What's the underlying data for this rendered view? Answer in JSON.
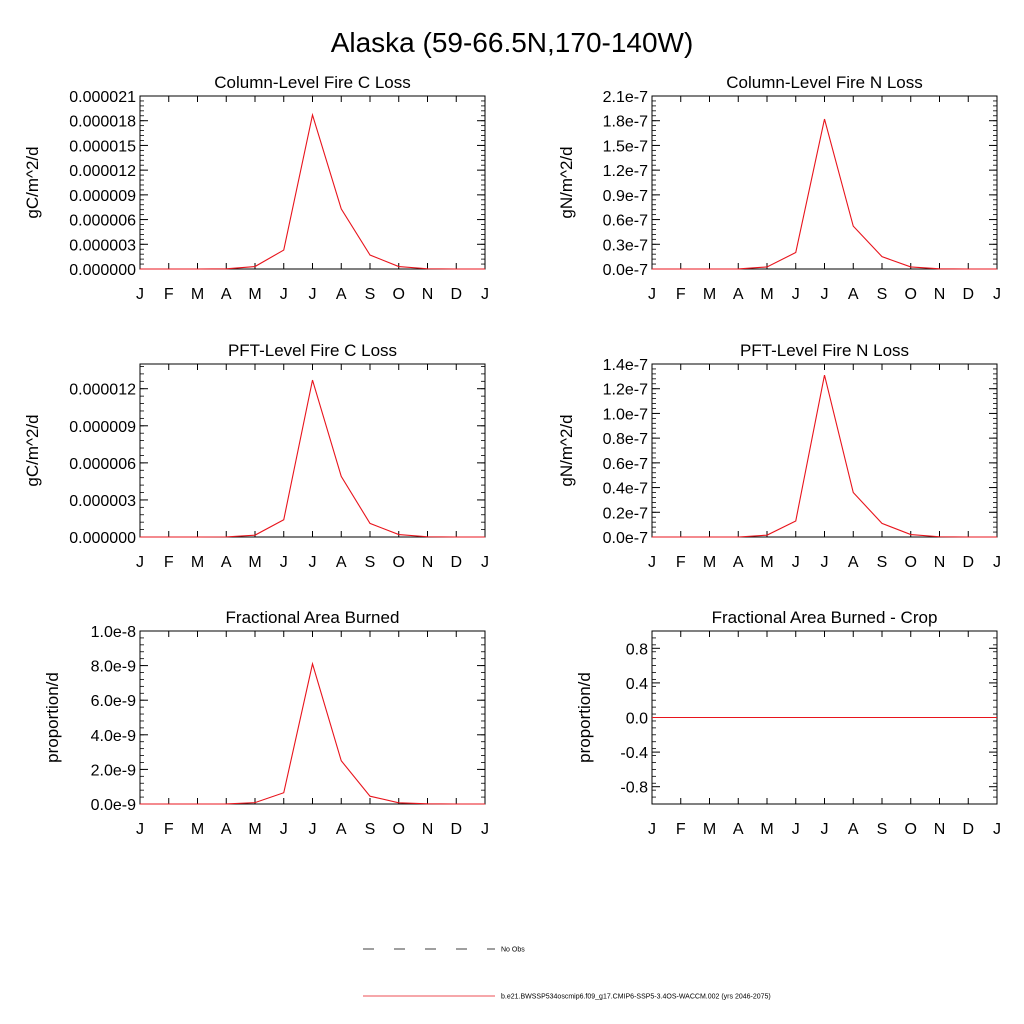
{
  "figure": {
    "title": "Alaska (59-66.5N,170-140W)"
  },
  "chart_data": [
    {
      "type": "line",
      "title": "Column-Level Fire C Loss",
      "xlabel": "",
      "ylabel": "gC/m^2/d",
      "x_ticks": [
        "J",
        "F",
        "M",
        "A",
        "M",
        "J",
        "J",
        "A",
        "S",
        "O",
        "N",
        "D",
        "J"
      ],
      "ylim": [
        0,
        2.1e-05
      ],
      "y_ticks": [
        0,
        3e-06,
        6e-06,
        9e-06,
        1.2e-05,
        1.5e-05,
        1.8e-05,
        2.1e-05
      ],
      "y_tick_labels": [
        "0.000000",
        "0.000003",
        "0.000006",
        "0.000009",
        "0.000012",
        "0.000015",
        "0.000018",
        "0.000021"
      ],
      "series": [
        {
          "name": "b.e21.BWSSP534oscmip6.f09_g17.CMIP6-SSP5-3.4OS-WACCM.002 (yrs 2046-2075)",
          "color": "#e8141c",
          "values": [
            0,
            0,
            0,
            2e-08,
            3e-07,
            2.3e-06,
            1.87e-05,
            7.3e-06,
            1.7e-06,
            3e-07,
            3e-08,
            0,
            0
          ]
        }
      ]
    },
    {
      "type": "line",
      "title": "Column-Level Fire N Loss",
      "xlabel": "",
      "ylabel": "gN/m^2/d",
      "x_ticks": [
        "J",
        "F",
        "M",
        "A",
        "M",
        "J",
        "J",
        "A",
        "S",
        "O",
        "N",
        "D",
        "J"
      ],
      "ylim": [
        0,
        2.1e-07
      ],
      "y_ticks": [
        0,
        3e-08,
        6e-08,
        9e-08,
        1.2e-07,
        1.5e-07,
        1.8e-07,
        2.1e-07
      ],
      "y_tick_labels": [
        "0.0e-7",
        "0.3e-7",
        "0.6e-7",
        "0.9e-7",
        "1.2e-7",
        "1.5e-7",
        "1.8e-7",
        "2.1e-7"
      ],
      "series": [
        {
          "name": "b.e21.BWSSP534oscmip6.f09_g17.CMIP6-SSP5-3.4OS-WACCM.002 (yrs 2046-2075)",
          "color": "#e8141c",
          "values": [
            0,
            0,
            0,
            2e-11,
            2.5e-09,
            2e-08,
            1.82e-07,
            5.2e-08,
            1.5e-08,
            2.5e-09,
            2.5e-10,
            0,
            0
          ]
        }
      ]
    },
    {
      "type": "line",
      "title": "PFT-Level Fire C Loss",
      "xlabel": "",
      "ylabel": "gC/m^2/d",
      "x_ticks": [
        "J",
        "F",
        "M",
        "A",
        "M",
        "J",
        "J",
        "A",
        "S",
        "O",
        "N",
        "D",
        "J"
      ],
      "ylim": [
        0,
        1.4e-05
      ],
      "y_ticks": [
        0,
        3e-06,
        6e-06,
        9e-06,
        1.2e-05
      ],
      "y_tick_labels": [
        "0.000000",
        "0.000003",
        "0.000006",
        "0.000009",
        "0.000012"
      ],
      "series": [
        {
          "name": "b.e21.BWSSP534oscmip6.f09_g17.CMIP6-SSP5-3.4OS-WACCM.002 (yrs 2046-2075)",
          "color": "#e8141c",
          "values": [
            0,
            0,
            0,
            1e-08,
            1.5e-07,
            1.4e-06,
            1.27e-05,
            4.9e-06,
            1.1e-06,
            2e-07,
            2e-08,
            0,
            0
          ]
        }
      ]
    },
    {
      "type": "line",
      "title": "PFT-Level Fire N Loss",
      "xlabel": "",
      "ylabel": "gN/m^2/d",
      "x_ticks": [
        "J",
        "F",
        "M",
        "A",
        "M",
        "J",
        "J",
        "A",
        "S",
        "O",
        "N",
        "D",
        "J"
      ],
      "ylim": [
        0,
        1.4e-07
      ],
      "y_ticks": [
        0,
        2e-08,
        4e-08,
        6e-08,
        8e-08,
        1e-07,
        1.2e-07,
        1.4e-07
      ],
      "y_tick_labels": [
        "0.0e-7",
        "0.2e-7",
        "0.4e-7",
        "0.6e-7",
        "0.8e-7",
        "1.0e-7",
        "1.2e-7",
        "1.4e-7"
      ],
      "series": [
        {
          "name": "b.e21.BWSSP534oscmip6.f09_g17.CMIP6-SSP5-3.4OS-WACCM.002 (yrs 2046-2075)",
          "color": "#e8141c",
          "values": [
            0,
            0,
            0,
            1e-11,
            1.5e-09,
            1.3e-08,
            1.31e-07,
            3.6e-08,
            1.1e-08,
            2e-09,
            2e-10,
            0,
            0
          ]
        }
      ]
    },
    {
      "type": "line",
      "title": "Fractional Area Burned",
      "xlabel": "",
      "ylabel": "proportion/d",
      "x_ticks": [
        "J",
        "F",
        "M",
        "A",
        "M",
        "J",
        "J",
        "A",
        "S",
        "O",
        "N",
        "D",
        "J"
      ],
      "ylim": [
        0,
        1e-08
      ],
      "y_ticks": [
        0,
        2e-09,
        4e-09,
        6e-09,
        8e-09,
        1e-08
      ],
      "y_tick_labels": [
        "0.0e-9",
        "2.0e-9",
        "4.0e-9",
        "6.0e-9",
        "8.0e-9",
        "1.0e-8"
      ],
      "series": [
        {
          "name": "b.e21.BWSSP534oscmip6.f09_g17.CMIP6-SSP5-3.4OS-WACCM.002 (yrs 2046-2075)",
          "color": "#e8141c",
          "values": [
            0,
            0,
            0,
            5e-12,
            8e-11,
            6.5e-10,
            8.1e-09,
            2.5e-09,
            4.5e-10,
            7e-11,
            1e-11,
            0,
            0
          ]
        }
      ]
    },
    {
      "type": "line",
      "title": "Fractional Area Burned - Crop",
      "xlabel": "",
      "ylabel": "proportion/d",
      "x_ticks": [
        "J",
        "F",
        "M",
        "A",
        "M",
        "J",
        "J",
        "A",
        "S",
        "O",
        "N",
        "D",
        "J"
      ],
      "ylim": [
        -1.0,
        1.0
      ],
      "y_ticks": [
        -0.8,
        -0.4,
        0,
        0.4,
        0.8
      ],
      "y_tick_labels": [
        "-0.8",
        "-0.4",
        "0.0",
        "0.4",
        "0.8"
      ],
      "series": [
        {
          "name": "b.e21.BWSSP534oscmip6.f09_g17.CMIP6-SSP5-3.4OS-WACCM.002 (yrs 2046-2075)",
          "color": "#e8141c",
          "values": [
            0,
            0,
            0,
            0,
            0,
            0,
            0,
            0,
            0,
            0,
            0,
            0,
            0
          ]
        }
      ]
    }
  ],
  "legend": {
    "placement": "bottom-center",
    "items": [
      {
        "label": "No Obs",
        "style": "dashed",
        "color": "#000000"
      },
      {
        "label": "b.e21.BWSSP534oscmip6.f09_g17.CMIP6-SSP5-3.4OS-WACCM.002 (yrs 2046-2075)",
        "style": "solid",
        "color": "#e8141c"
      }
    ]
  }
}
